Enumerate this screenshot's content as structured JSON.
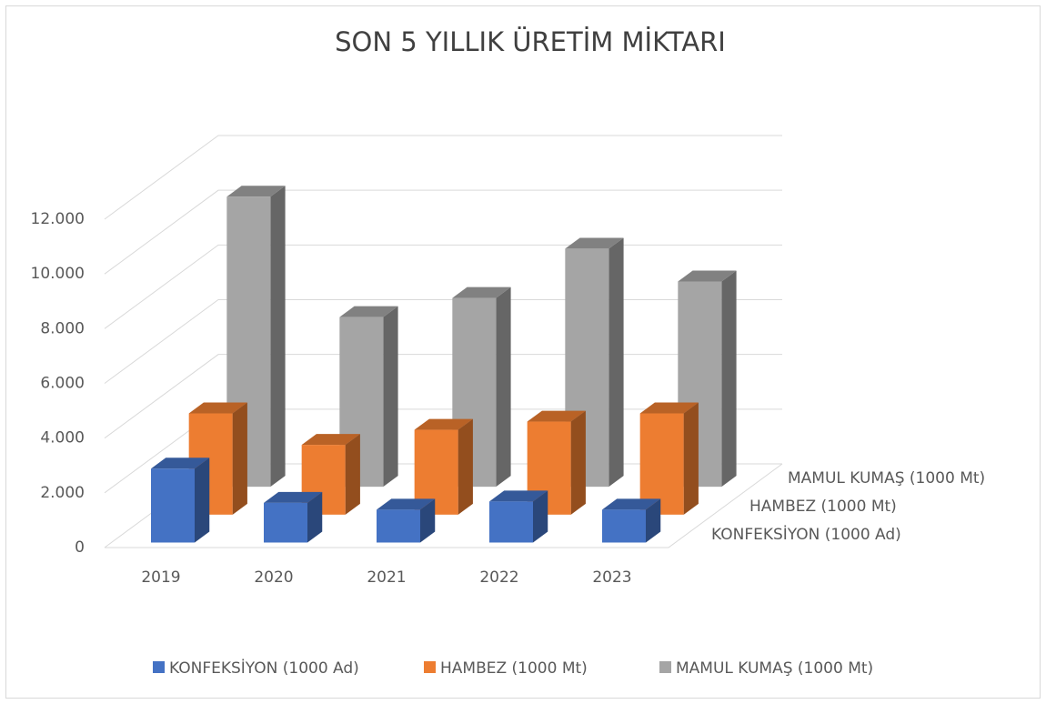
{
  "chart_data": {
    "type": "bar3d",
    "title": "SON 5 YILLIK ÜRETİM MİKTARI",
    "categories": [
      "2019",
      "2020",
      "2021",
      "2022",
      "2023"
    ],
    "series": [
      {
        "name": "KONFEKSİYON (1000 Ad)",
        "color": "#4472c4",
        "values": [
          2700,
          1450,
          1200,
          1500,
          1200
        ]
      },
      {
        "name": "HAMBEZ (1000 Mt)",
        "color": "#ed7d31",
        "values": [
          3700,
          2550,
          3100,
          3400,
          3700
        ]
      },
      {
        "name": "MAMUL KUMAŞ (1000 Mt)",
        "color": "#a5a5a5",
        "values": [
          10600,
          6200,
          6900,
          8700,
          7500
        ]
      }
    ],
    "ylim": [
      0,
      12000
    ],
    "yticks": [
      {
        "value": 0,
        "label": "0"
      },
      {
        "value": 2000,
        "label": "2.000"
      },
      {
        "value": 4000,
        "label": "4.000"
      },
      {
        "value": 6000,
        "label": "6.000"
      },
      {
        "value": 8000,
        "label": "8.000"
      },
      {
        "value": 10000,
        "label": "10.000"
      },
      {
        "value": 12000,
        "label": "12.000"
      }
    ],
    "grid": true,
    "legend": "bottom"
  }
}
